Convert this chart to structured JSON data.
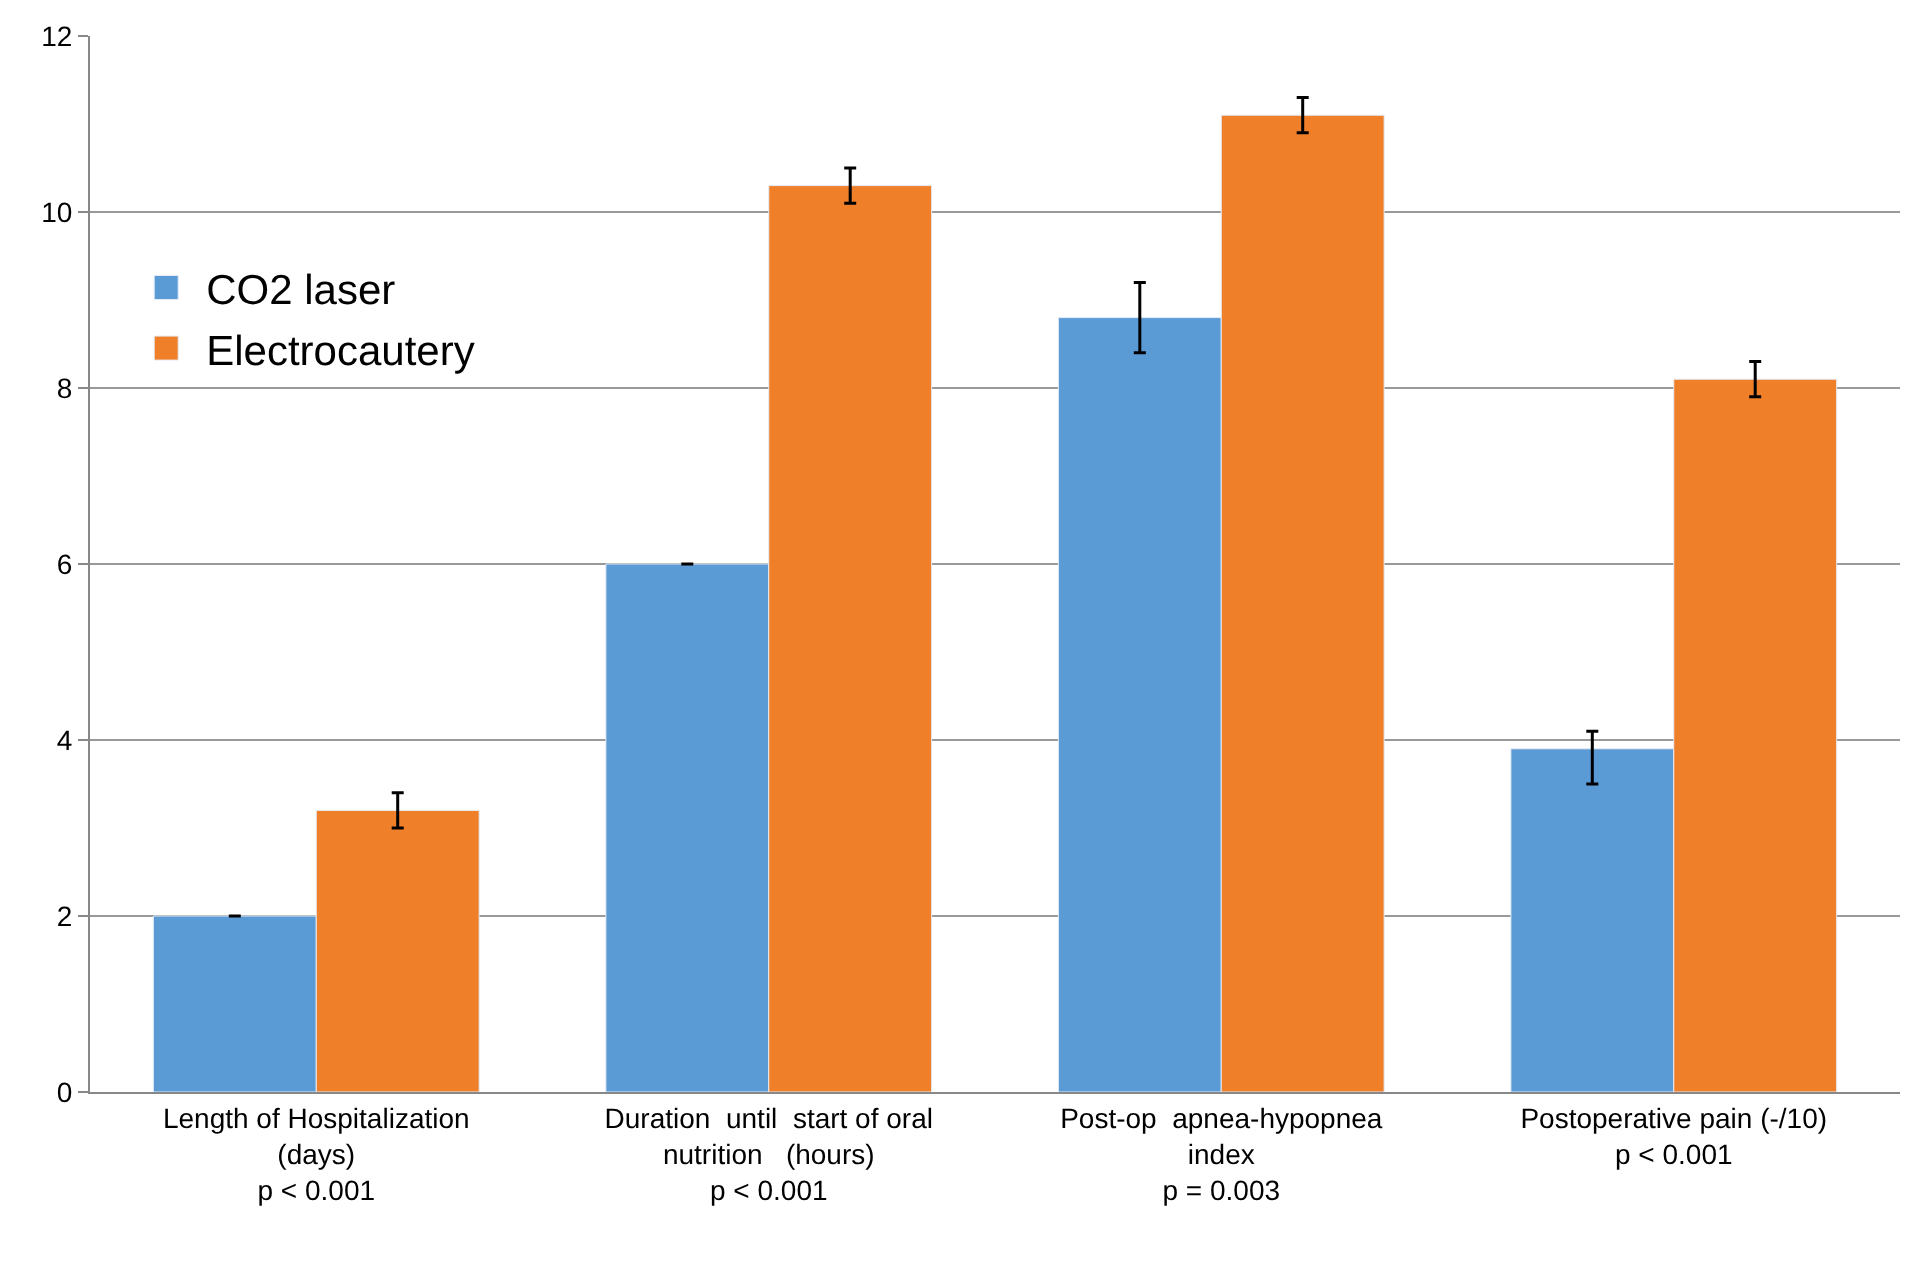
{
  "chart_data": {
    "type": "bar",
    "categories": [
      "Length of Hospitalization\n(days)\np < 0.001",
      "Duration  until  start of oral\nnutrition   (hours)\np < 0.001",
      "Post-op  apnea-hypopnea\nindex\np = 0.003",
      "Postoperative pain (-/10)\np < 0.001"
    ],
    "series": [
      {
        "name": "CO2 laser",
        "color": "#5b9bd5",
        "values": [
          2.0,
          6.0,
          8.8,
          3.9
        ],
        "errors": [
          0,
          0,
          0.4,
          [
            3.5,
            4.1
          ]
        ]
      },
      {
        "name": "Electrocautery",
        "color": "#f07f2a",
        "values": [
          3.2,
          10.3,
          11.1,
          8.1
        ],
        "errors": [
          0.2,
          0.2,
          0.2,
          0.2
        ]
      }
    ],
    "ylim": [
      0,
      12
    ],
    "yticks": [
      0,
      2,
      4,
      6,
      8,
      10,
      12
    ],
    "grid": "y",
    "legend": "top left"
  }
}
